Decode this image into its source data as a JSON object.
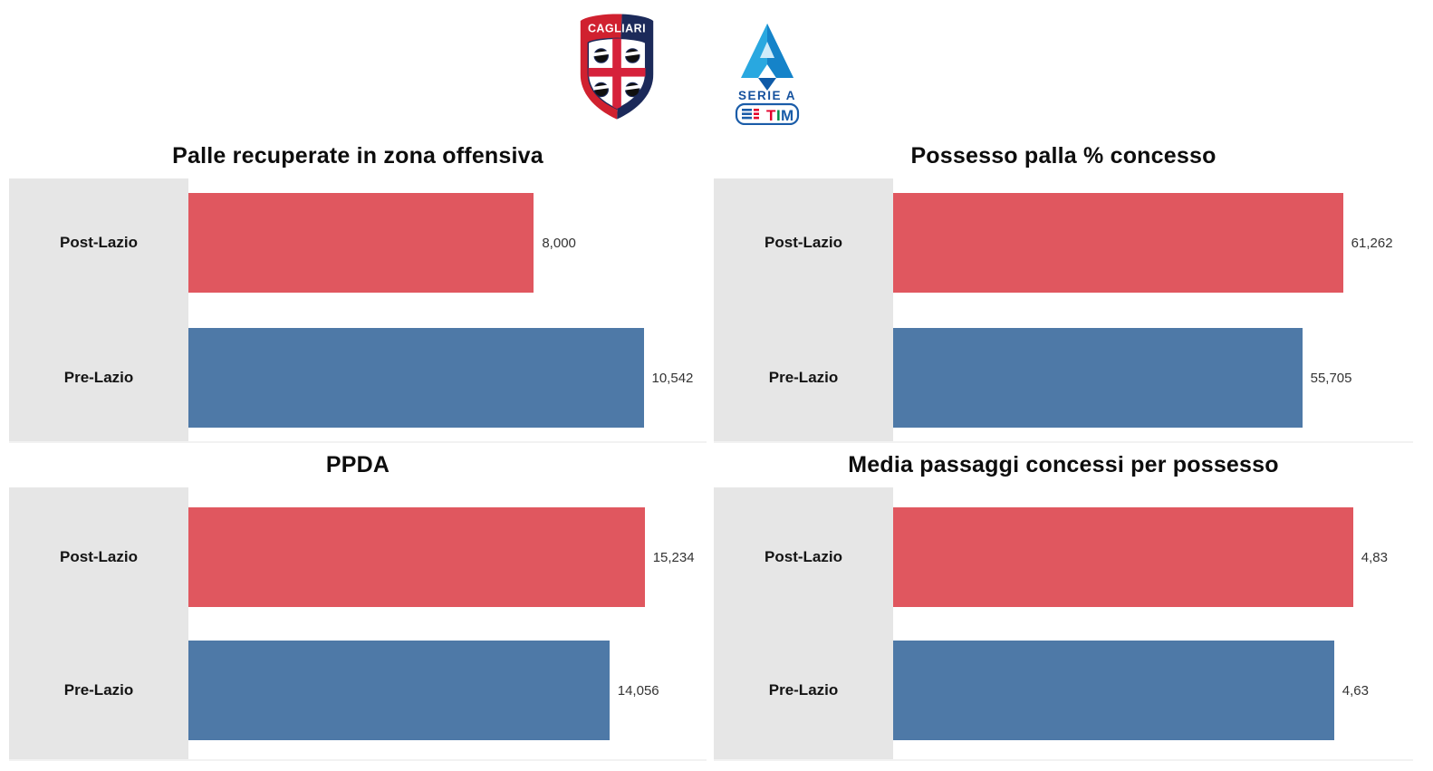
{
  "header": {
    "cagliari_crest_label": "CAGLIARI",
    "seriea_label": "SERIE A",
    "tim_letters": [
      "T",
      "I",
      "M"
    ]
  },
  "colors": {
    "post_bar": "#E0575F",
    "pre_bar": "#4E79A7",
    "category_band": "#E6E6E6",
    "axis_line": "#F2F2F2",
    "title_text": "#0D0D0D",
    "value_text": "#333333",
    "cagliari_red": "#D0212F",
    "cagliari_navy": "#1C2A5A",
    "seriea_light_blue": "#29A8E0",
    "seriea_mid_blue": "#1583C9",
    "seriea_dark_blue": "#15519E",
    "tim_red": "#E4002B",
    "tim_green": "#008C45"
  },
  "chart_data": [
    {
      "type": "bar",
      "orientation": "horizontal",
      "title": "Palle recuperate in zona offensiva",
      "categories": [
        "Post-Lazio",
        "Pre-Lazio"
      ],
      "values": [
        8.0,
        10.542
      ],
      "display_values": [
        "8,000",
        "10,542"
      ],
      "axis_max": 12.0,
      "bar_colors": [
        "#E0575F",
        "#4E79A7"
      ],
      "grid": false,
      "legend": "none"
    },
    {
      "type": "bar",
      "orientation": "horizontal",
      "title": "Possesso palla % concesso",
      "categories": [
        "Post-Lazio",
        "Pre-Lazio"
      ],
      "values": [
        61.262,
        55.705
      ],
      "display_values": [
        "61,262",
        "55,705"
      ],
      "axis_max": 70.8,
      "bar_colors": [
        "#E0575F",
        "#4E79A7"
      ],
      "grid": false,
      "legend": "none"
    },
    {
      "type": "bar",
      "orientation": "horizontal",
      "title": "PPDA",
      "categories": [
        "Post-Lazio",
        "Pre-Lazio"
      ],
      "values": [
        15.234,
        14.056
      ],
      "display_values": [
        "15,234",
        "14,056"
      ],
      "axis_max": 17.3,
      "bar_colors": [
        "#E0575F",
        "#4E79A7"
      ],
      "grid": false,
      "legend": "none"
    },
    {
      "type": "bar",
      "orientation": "horizontal",
      "title": "Media passaggi concessi per possesso",
      "categories": [
        "Post-Lazio",
        "Pre-Lazio"
      ],
      "values": [
        4.83,
        4.63
      ],
      "display_values": [
        "4,83",
        "4,63"
      ],
      "axis_max": 5.46,
      "bar_colors": [
        "#E0575F",
        "#4E79A7"
      ],
      "grid": false,
      "legend": "none"
    }
  ]
}
